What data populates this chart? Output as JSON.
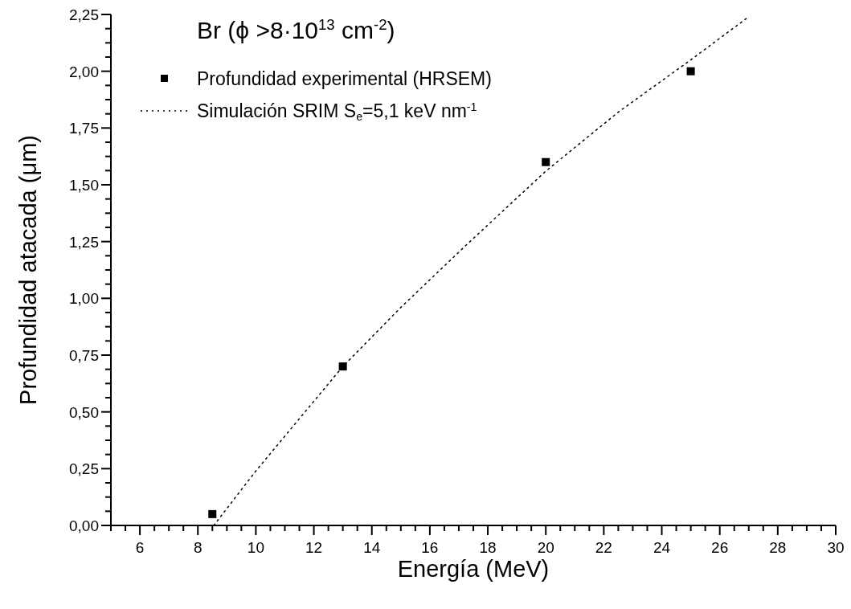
{
  "chart_data": {
    "type": "scatter",
    "title": "Br (ϕ >8·10$^{13}$ cm$^{-2}$)",
    "xlabel": "Energía (MeV)",
    "ylabel": "Profundidad atacada (μm)",
    "xlim": [
      5,
      30
    ],
    "ylim": [
      0,
      2.25
    ],
    "xticks": [
      {
        "value": 5,
        "label": null
      },
      {
        "value": 5.5,
        "label": null
      },
      6,
      {
        "value": 6.5,
        "label": null
      },
      {
        "value": 7,
        "label": null
      },
      {
        "value": 7.5,
        "label": null
      },
      8,
      {
        "value": 8.5,
        "label": null
      },
      {
        "value": 9,
        "label": null
      },
      {
        "value": 9.5,
        "label": null
      },
      10,
      {
        "value": 10.5,
        "label": null
      },
      {
        "value": 11,
        "label": null
      },
      {
        "value": 11.5,
        "label": null
      },
      12,
      {
        "value": 12.5,
        "label": null
      },
      {
        "value": 13,
        "label": null
      },
      {
        "value": 13.5,
        "label": null
      },
      14,
      {
        "value": 14.5,
        "label": null
      },
      {
        "value": 15,
        "label": null
      },
      {
        "value": 15.5,
        "label": null
      },
      16,
      {
        "value": 16.5,
        "label": null
      },
      {
        "value": 17,
        "label": null
      },
      {
        "value": 17.5,
        "label": null
      },
      18,
      {
        "value": 18.5,
        "label": null
      },
      {
        "value": 19,
        "label": null
      },
      {
        "value": 19.5,
        "label": null
      },
      20,
      {
        "value": 20.5,
        "label": null
      },
      {
        "value": 21,
        "label": null
      },
      {
        "value": 21.5,
        "label": null
      },
      22,
      {
        "value": 22.5,
        "label": null
      },
      {
        "value": 23,
        "label": null
      },
      {
        "value": 23.5,
        "label": null
      },
      24,
      {
        "value": 24.5,
        "label": null
      },
      {
        "value": 25,
        "label": null
      },
      {
        "value": 25.5,
        "label": null
      },
      26,
      {
        "value": 26.5,
        "label": null
      },
      {
        "value": 27,
        "label": null
      },
      {
        "value": 27.5,
        "label": null
      },
      28,
      {
        "value": 28.5,
        "label": null
      },
      {
        "value": 29,
        "label": null
      },
      {
        "value": 29.5,
        "label": null
      },
      30
    ],
    "yticks": [
      {
        "value": 0,
        "label": "0,00"
      },
      {
        "value": 0.0625,
        "label": null
      },
      {
        "value": 0.125,
        "label": null
      },
      {
        "value": 0.1875,
        "label": null
      },
      {
        "value": 0.25,
        "label": "0,25"
      },
      {
        "value": 0.3125,
        "label": null
      },
      {
        "value": 0.375,
        "label": null
      },
      {
        "value": 0.4375,
        "label": null
      },
      {
        "value": 0.5,
        "label": "0,50"
      },
      {
        "value": 0.5625,
        "label": null
      },
      {
        "value": 0.625,
        "label": null
      },
      {
        "value": 0.6875,
        "label": null
      },
      {
        "value": 0.75,
        "label": "0,75"
      },
      {
        "value": 0.8125,
        "label": null
      },
      {
        "value": 0.875,
        "label": null
      },
      {
        "value": 0.9375,
        "label": null
      },
      {
        "value": 1,
        "label": "1,00"
      },
      {
        "value": 1.0625,
        "label": null
      },
      {
        "value": 1.125,
        "label": null
      },
      {
        "value": 1.1875,
        "label": null
      },
      {
        "value": 1.25,
        "label": "1,25"
      },
      {
        "value": 1.3125,
        "label": null
      },
      {
        "value": 1.375,
        "label": null
      },
      {
        "value": 1.4375,
        "label": null
      },
      {
        "value": 1.5,
        "label": "1,50"
      },
      {
        "value": 1.5625,
        "label": null
      },
      {
        "value": 1.625,
        "label": null
      },
      {
        "value": 1.6875,
        "label": null
      },
      {
        "value": 1.75,
        "label": "1,75"
      },
      {
        "value": 1.8125,
        "label": null
      },
      {
        "value": 1.875,
        "label": null
      },
      {
        "value": 1.9375,
        "label": null
      },
      {
        "value": 2,
        "label": "2,00"
      },
      {
        "value": 2.0625,
        "label": null
      },
      {
        "value": 2.125,
        "label": null
      },
      {
        "value": 2.1875,
        "label": null
      },
      {
        "value": 2.25,
        "label": "2,25"
      }
    ],
    "grid": false,
    "legend": "top left",
    "series": [
      {
        "name": "Profundidad experimental (HRSEM)",
        "marker": "square",
        "color": "#000000",
        "x": [
          8.5,
          13,
          20,
          25
        ],
        "values": [
          0.05,
          0.7,
          1.6,
          2.0
        ]
      },
      {
        "name": "Simulación SRIM S$_{e}$=5,1 keV nm$^{-1}$",
        "type": "line",
        "line_style": "dotted",
        "marker": "none",
        "color": "#000000",
        "x": [
          8.55,
          10,
          13,
          15,
          17.3,
          20,
          22.5,
          25,
          27
        ],
        "values": [
          0,
          0.24,
          0.7,
          0.96,
          1.24,
          1.56,
          1.82,
          2.05,
          2.24
        ]
      }
    ]
  }
}
